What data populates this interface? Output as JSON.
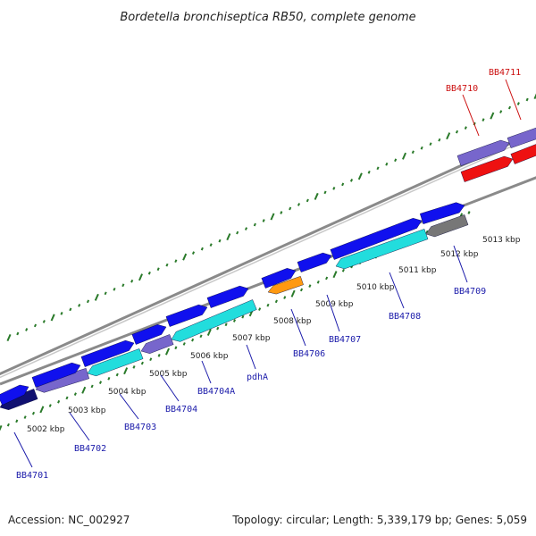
{
  "title": "Bordetella bronchiseptica RB50, complete genome",
  "footer": {
    "accession": "Accession: NC_002927",
    "summary": "Topology: circular; Length: 5,339,179 bp; Genes: 5,059"
  },
  "colors": {
    "blue_gene": "#1010ee",
    "cyan_gene": "#22dddd",
    "purple_gene": "#7766cc",
    "navy_gene": "#101070",
    "orange_gene": "#ff9911",
    "gray_gene": "#777777",
    "red_gene": "#ee1111",
    "tick": "#2a7a2a",
    "backbone": "#8a8a8a",
    "label_blue": "#1a1aaa",
    "label_red": "#cc1111"
  },
  "chart_data": {
    "type": "genome-map",
    "units": "kbp",
    "kbp_ticks": [
      {
        "label": "5002 kbp",
        "kbp": 5002
      },
      {
        "label": "5003 kbp",
        "kbp": 5003
      },
      {
        "label": "5004 kbp",
        "kbp": 5004
      },
      {
        "label": "5005 kbp",
        "kbp": 5005
      },
      {
        "label": "5006 kbp",
        "kbp": 5006
      },
      {
        "label": "5007 kbp",
        "kbp": 5007
      },
      {
        "label": "5008 kbp",
        "kbp": 5008
      },
      {
        "label": "5009 kbp",
        "kbp": 5009
      },
      {
        "label": "5010 kbp",
        "kbp": 5010
      },
      {
        "label": "5011 kbp",
        "kbp": 5011
      },
      {
        "label": "5012 kbp",
        "kbp": 5012
      },
      {
        "label": "5013 kbp",
        "kbp": 5013
      }
    ],
    "genes": [
      {
        "label": "BB4701",
        "kbp": 5001.8,
        "strand": "minus",
        "type": "navy"
      },
      {
        "label": "BB4702",
        "kbp": 5002.9,
        "strand": "minus",
        "type": "purple"
      },
      {
        "label": "BB4703",
        "kbp": 5003.9,
        "strand": "minus",
        "type": "cyan"
      },
      {
        "label": "BB4704",
        "kbp": 5005.0,
        "strand": "minus",
        "type": "purple"
      },
      {
        "label": "BB4704A",
        "kbp": 5006.0,
        "strand": "minus",
        "type": "cyan"
      },
      {
        "label": "pdhA",
        "kbp": 5007.1,
        "strand": "minus",
        "type": "cyan"
      },
      {
        "label": "BB4706",
        "kbp": 5008.3,
        "strand": "minus",
        "type": "orange"
      },
      {
        "label": "BB4707",
        "kbp": 5009.1,
        "strand": "plus",
        "type": "blue"
      },
      {
        "label": "BB4708",
        "kbp": 5010.6,
        "strand": "minus",
        "type": "cyan"
      },
      {
        "label": "BB4709",
        "kbp": 5012.1,
        "strand": "minus",
        "type": "gray"
      },
      {
        "label": "BB4710",
        "kbp": 5013.9,
        "strand": "plus",
        "type": "purple"
      },
      {
        "label": "BB4711",
        "kbp": 5014.6,
        "strand": "minus",
        "type": "red"
      }
    ]
  }
}
